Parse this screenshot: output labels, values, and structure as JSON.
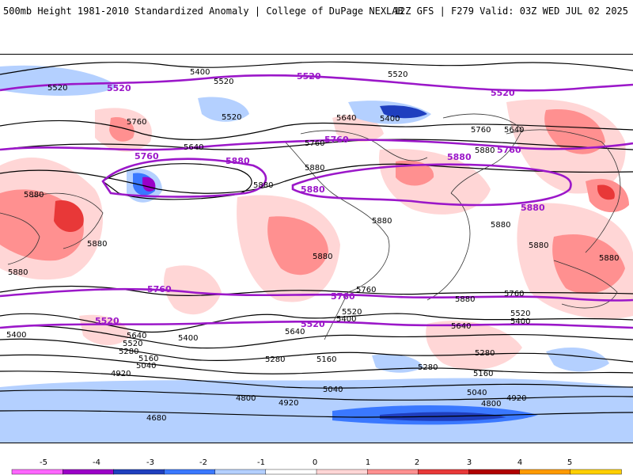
{
  "header": {
    "left": "500mb Height 1981-2010 Standardized Anomaly | College of DuPage NEXLAB",
    "right": "12Z GFS | F279 Valid: 03Z WED JUL 02 2025"
  },
  "colors": {
    "key_contour": "#9b17c9",
    "map_line": "#000000",
    "anomaly_scale": [
      "#ff66ff",
      "#9b00c8",
      "#1f3fbf",
      "#3a78ff",
      "#b4d0ff",
      "#ffffff",
      "#ffd6d6",
      "#ff9090",
      "#e83838",
      "#b00000",
      "#ff9a00",
      "#ffd000"
    ]
  },
  "colorbar": {
    "ticks": [
      "-5",
      "-4",
      "-3",
      "-2",
      "-1",
      "0",
      "1",
      "2",
      "3",
      "4",
      "5"
    ]
  },
  "contours": {
    "key_labels": [
      "5520",
      "5520",
      "5520",
      "5760",
      "5760",
      "5880",
      "5880",
      "5880",
      "5880",
      "5760",
      "5760",
      "5760",
      "5520",
      "5520"
    ],
    "labels": [
      "5400",
      "5520",
      "5520",
      "5520",
      "5520",
      "5400",
      "5640",
      "5640",
      "5760",
      "5880",
      "5880",
      "5880",
      "5880",
      "5760",
      "5880",
      "5880",
      "5760",
      "5880",
      "5880",
      "5880",
      "5880",
      "5760",
      "5880",
      "5880",
      "5640",
      "5640",
      "5520",
      "5400",
      "5520",
      "5400",
      "5400",
      "5640",
      "5520",
      "5400",
      "5280",
      "5280",
      "5160",
      "5040",
      "4920",
      "4800",
      "4680",
      "5040",
      "4920",
      "4800",
      "5160",
      "5280",
      "5160",
      "5040",
      "4920",
      "5280",
      "5760",
      "5640"
    ]
  }
}
